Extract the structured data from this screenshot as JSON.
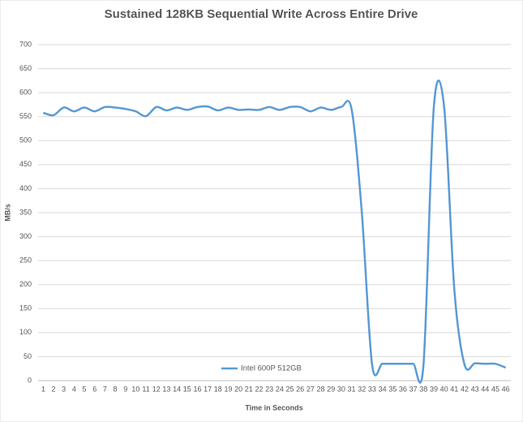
{
  "chart_data": {
    "type": "line",
    "title": "Sustained 128KB Sequential Write Across Entire Drive",
    "x_label": "Time in Seconds",
    "y_label": "MB/s",
    "categories": [
      1,
      2,
      3,
      4,
      5,
      6,
      7,
      8,
      9,
      10,
      11,
      12,
      13,
      14,
      15,
      16,
      17,
      18,
      19,
      20,
      21,
      22,
      23,
      24,
      25,
      26,
      27,
      28,
      29,
      30,
      31,
      32,
      33,
      34,
      35,
      36,
      37,
      38,
      39,
      40,
      41,
      42,
      43,
      44,
      45,
      46
    ],
    "series": [
      {
        "name": "Intel 600P 512GB",
        "color": "#5b9bd5",
        "values": [
          558,
          553,
          569,
          561,
          569,
          561,
          570,
          569,
          566,
          561,
          551,
          570,
          563,
          569,
          564,
          570,
          571,
          563,
          569,
          564,
          565,
          564,
          570,
          564,
          570,
          570,
          561,
          569,
          564,
          570,
          566,
          350,
          33,
          35,
          35,
          35,
          35,
          33,
          568,
          572,
          190,
          33,
          36,
          35,
          35,
          27
        ]
      }
    ],
    "ylim": [
      0,
      700
    ],
    "yticks": [
      0,
      50,
      100,
      150,
      200,
      250,
      300,
      350,
      400,
      450,
      500,
      550,
      600,
      650,
      700
    ],
    "grid": true,
    "legend": "bottom"
  }
}
